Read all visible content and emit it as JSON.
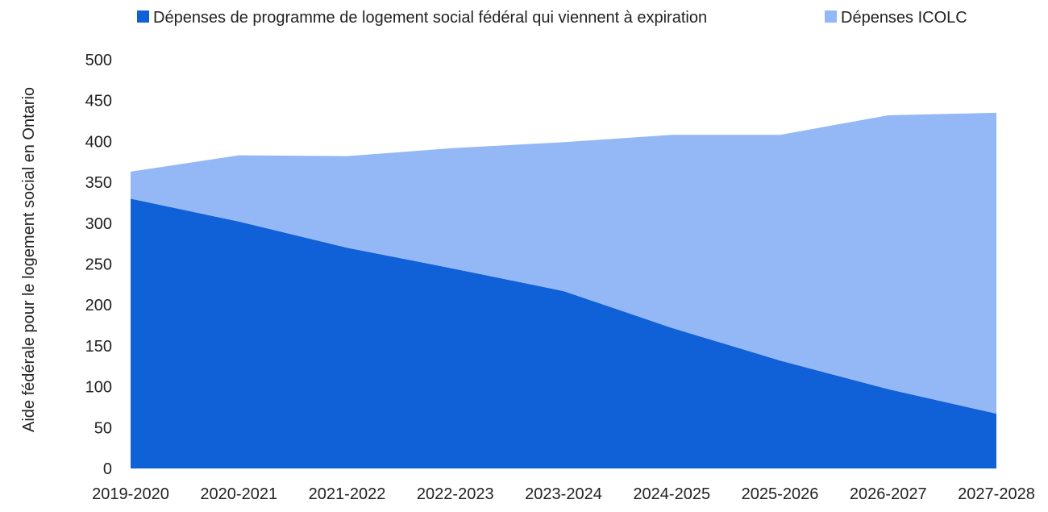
{
  "chart_data": {
    "type": "area",
    "stacked": true,
    "categories": [
      "2019-2020",
      "2020-2021",
      "2021-2022",
      "2022-2023",
      "2023-2024",
      "2024-2025",
      "2025-2026",
      "2026-2027",
      "2027-2028"
    ],
    "series": [
      {
        "name": "Dépenses de programme de logement social fédéral qui viennent à expiration",
        "color": "#1060d8",
        "values": [
          330,
          302,
          270,
          244,
          217,
          172,
          132,
          97,
          67
        ]
      },
      {
        "name": "Dépenses ICOLC",
        "color": "#93b8f5",
        "values": [
          33,
          81,
          112,
          148,
          182,
          236,
          276,
          335,
          368
        ]
      }
    ],
    "totals": [
      363,
      383,
      382,
      392,
      399,
      408,
      408,
      432,
      435
    ],
    "title": "",
    "xlabel": "",
    "ylabel": "Aide fédérale pour le logement social en Ontario",
    "ylim": [
      0,
      500
    ],
    "yticks": [
      "0",
      "50",
      "100",
      "150",
      "200",
      "250",
      "300",
      "350",
      "400",
      "450",
      "500"
    ],
    "grid": false,
    "legend_position": "top"
  }
}
